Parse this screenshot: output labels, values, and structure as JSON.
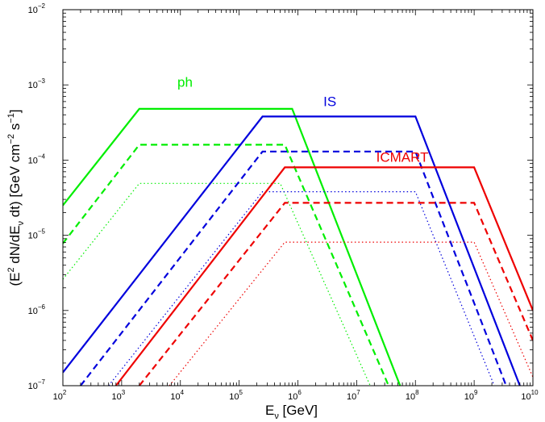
{
  "chart_data": {
    "type": "line",
    "title": "",
    "xlabel": {
      "base": "E",
      "sub": "ν",
      "rest": " [GeV]"
    },
    "ylabel": "(Eν² dN/dEν dt) [GeV cm⁻² s⁻¹]",
    "ylabel_parts": {
      "open": "(E",
      "sup1": "2",
      "mid": " dN/dE",
      "sub1": "ν",
      "close": " dt) [GeV cm",
      "sup2": "−2",
      "s": " s",
      "sup3": "−1",
      "end": "]"
    },
    "x_scale": "log",
    "y_scale": "log",
    "xlim": [
      100,
      10000000000
    ],
    "ylim": [
      1e-07,
      0.01
    ],
    "x_ticks": [
      {
        "base": "10",
        "exp": "2"
      },
      {
        "base": "10",
        "exp": "3"
      },
      {
        "base": "10",
        "exp": "4"
      },
      {
        "base": "10",
        "exp": "5"
      },
      {
        "base": "10",
        "exp": "6"
      },
      {
        "base": "10",
        "exp": "7"
      },
      {
        "base": "10",
        "exp": "8"
      },
      {
        "base": "10",
        "exp": "9"
      },
      {
        "base": "10",
        "exp": "10"
      }
    ],
    "y_ticks": [
      {
        "base": "10",
        "exp": "−7"
      },
      {
        "base": "10",
        "exp": "−6"
      },
      {
        "base": "10",
        "exp": "−5"
      },
      {
        "base": "10",
        "exp": "−4"
      },
      {
        "base": "10",
        "exp": "−3"
      },
      {
        "base": "10",
        "exp": "−2"
      }
    ],
    "grid": false,
    "colors": {
      "ph": "#00ee00",
      "IS": "#0000dd",
      "ICMART": "#ee0000"
    },
    "labels": {
      "ph": "ph",
      "IS": "IS",
      "ICMART": "ICMART"
    },
    "series": [
      {
        "group": "ph",
        "style": "solid",
        "points": [
          [
            100,
            2.5e-05
          ],
          [
            2000,
            0.00048
          ],
          [
            800000,
            0.00048
          ],
          [
            55000000,
            1e-07
          ]
        ]
      },
      {
        "group": "ph",
        "style": "dashed",
        "points": [
          [
            100,
            7.8e-06
          ],
          [
            2000,
            0.00016
          ],
          [
            600000,
            0.00016
          ],
          [
            35000000,
            1e-07
          ]
        ]
      },
      {
        "group": "ph",
        "style": "dotted",
        "points": [
          [
            100,
            2.6e-06
          ],
          [
            2000,
            4.9e-05
          ],
          [
            500000,
            4.9e-05
          ],
          [
            17000000,
            1e-07
          ]
        ]
      },
      {
        "group": "IS",
        "style": "solid",
        "points": [
          [
            100,
            1.5e-07
          ],
          [
            250000,
            0.00038
          ],
          [
            100000000,
            0.00038
          ],
          [
            6000000000,
            1e-07
          ]
        ]
      },
      {
        "group": "IS",
        "style": "dashed",
        "points": [
          [
            200,
            1e-07
          ],
          [
            250000,
            0.00013
          ],
          [
            100000000,
            0.00013
          ],
          [
            3500000000,
            1e-07
          ]
        ]
      },
      {
        "group": "IS",
        "style": "dotted",
        "points": [
          [
            600,
            1e-07
          ],
          [
            250000,
            3.8e-05
          ],
          [
            100000000,
            3.8e-05
          ],
          [
            2200000000,
            1e-07
          ]
        ]
      },
      {
        "group": "ICMART",
        "style": "solid",
        "points": [
          [
            800,
            1e-07
          ],
          [
            600000,
            8e-05
          ],
          [
            1000000000,
            8e-05
          ],
          [
            10000000000,
            1e-06
          ]
        ]
      },
      {
        "group": "ICMART",
        "style": "dashed",
        "points": [
          [
            2000,
            1e-07
          ],
          [
            600000,
            2.7e-05
          ],
          [
            1000000000,
            2.7e-05
          ],
          [
            10000000000,
            4e-07
          ]
        ]
      },
      {
        "group": "ICMART",
        "style": "dotted",
        "points": [
          [
            6500,
            1e-07
          ],
          [
            600000,
            8.1e-06
          ],
          [
            1000000000,
            8.1e-06
          ],
          [
            10000000000,
            1.3e-07
          ]
        ]
      }
    ],
    "annotations": [
      {
        "text": "ph",
        "group": "ph",
        "x": 12000,
        "y": 0.00095
      },
      {
        "text": "IS",
        "group": "IS",
        "x": 3500000,
        "y": 0.00052
      },
      {
        "text": "ICMART",
        "group": "ICMART",
        "x": 60000000,
        "y": 9.5e-05
      }
    ]
  }
}
